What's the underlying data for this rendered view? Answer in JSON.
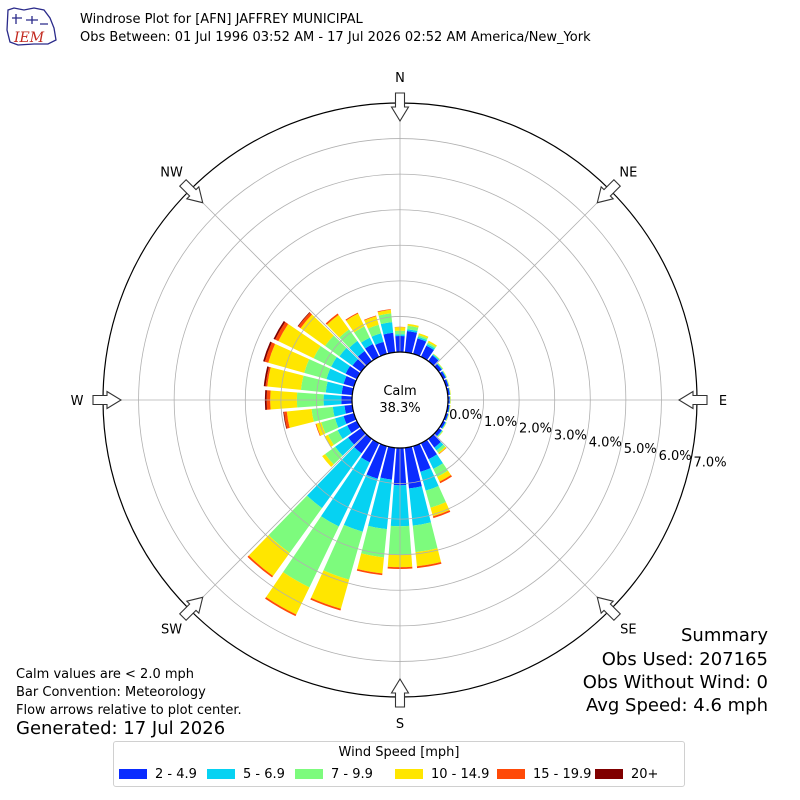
{
  "header": {
    "title": "Windrose Plot for [AFN] JAFFREY MUNICIPAL",
    "subtitle": "Obs Between: 01 Jul 1996 03:52 AM - 17 Jul 2026 02:52 AM America/New_York",
    "logo_text": "IEM"
  },
  "footer": {
    "calm_note": "Calm values are < 2.0 mph",
    "bar_convention": "Bar Convention: Meteorology",
    "flow_note": "Flow arrows relative to plot center.",
    "generated": "Generated: 17 Jul 2026"
  },
  "summary": {
    "heading": "Summary",
    "obs_used": "Obs Used: 207165",
    "obs_without_wind": "Obs Without Wind: 0",
    "avg_speed": "Avg Speed: 4.6 mph"
  },
  "legend": {
    "title": "Wind Speed [mph]"
  },
  "chart_data": {
    "type": "windrose",
    "calm_label": "Calm",
    "calm_value": "38.3%",
    "directions": [
      "N",
      "NE",
      "E",
      "SE",
      "S",
      "SW",
      "W",
      "NW"
    ],
    "radial_ticks": [
      "0.0%",
      "1.0%",
      "2.0%",
      "3.0%",
      "4.0%",
      "5.0%",
      "6.0%",
      "7.0%"
    ],
    "r_max_percent": 7.0,
    "calm_percent": 38.3,
    "grid": true,
    "bins": [
      {
        "label": "2 - 4.9",
        "color": "#0a2cff"
      },
      {
        "label": "5 - 6.9",
        "color": "#06d2f2"
      },
      {
        "label": "7 - 9.9",
        "color": "#7dfb7d"
      },
      {
        "label": "10 - 14.9",
        "color": "#ffe600"
      },
      {
        "label": "15 - 19.9",
        "color": "#ff4a08"
      },
      {
        "label": "20+",
        "color": "#800000"
      }
    ],
    "sector_direction_deg": [
      0,
      10,
      20,
      30,
      40,
      50,
      60,
      70,
      80,
      90,
      100,
      110,
      120,
      130,
      140,
      150,
      160,
      170,
      180,
      190,
      200,
      210,
      220,
      230,
      240,
      250,
      260,
      270,
      280,
      290,
      300,
      310,
      320,
      330,
      340,
      350
    ],
    "cumulative_percent": [
      [
        0.45,
        0.5,
        0.6,
        0.7,
        0.71,
        0.71
      ],
      [
        0.6,
        0.65,
        0.75,
        0.8,
        0.8,
        0.8
      ],
      [
        0.45,
        0.5,
        0.55,
        0.6,
        0.6,
        0.6
      ],
      [
        0.35,
        0.4,
        0.45,
        0.5,
        0.5,
        0.5
      ],
      [
        0.2,
        0.23,
        0.25,
        0.26,
        0.26,
        0.26
      ],
      [
        0.1,
        0.12,
        0.14,
        0.15,
        0.15,
        0.15
      ],
      [
        0.08,
        0.1,
        0.11,
        0.12,
        0.12,
        0.12
      ],
      [
        0.07,
        0.08,
        0.09,
        0.1,
        0.1,
        0.1
      ],
      [
        0.06,
        0.07,
        0.08,
        0.09,
        0.09,
        0.09
      ],
      [
        0.05,
        0.06,
        0.07,
        0.08,
        0.08,
        0.08
      ],
      [
        0.05,
        0.06,
        0.07,
        0.08,
        0.08,
        0.08
      ],
      [
        0.06,
        0.07,
        0.08,
        0.09,
        0.09,
        0.09
      ],
      [
        0.07,
        0.09,
        0.1,
        0.11,
        0.11,
        0.11
      ],
      [
        0.1,
        0.12,
        0.14,
        0.15,
        0.15,
        0.15
      ],
      [
        0.3,
        0.4,
        0.48,
        0.52,
        0.53,
        0.53
      ],
      [
        0.5,
        0.8,
        1.05,
        1.2,
        1.25,
        1.25
      ],
      [
        0.75,
        1.3,
        1.8,
        2.05,
        2.1,
        2.1
      ],
      [
        1.15,
        2.2,
        2.95,
        3.35,
        3.4,
        3.4
      ],
      [
        1.05,
        2.2,
        3.0,
        3.35,
        3.4,
        3.4
      ],
      [
        0.9,
        2.3,
        3.1,
        3.55,
        3.6,
        3.6
      ],
      [
        0.95,
        2.5,
        3.9,
        4.75,
        4.8,
        4.8
      ],
      [
        0.6,
        2.6,
        4.5,
        5.35,
        5.4,
        5.4
      ],
      [
        0.5,
        2.4,
        3.95,
        4.75,
        4.8,
        4.8
      ],
      [
        0.45,
        0.9,
        1.25,
        1.35,
        1.35,
        1.35
      ],
      [
        0.3,
        0.6,
        0.9,
        1.0,
        1.0,
        1.0
      ],
      [
        0.3,
        0.55,
        0.95,
        1.1,
        1.12,
        1.12
      ],
      [
        0.22,
        0.55,
        1.15,
        1.85,
        1.93,
        1.95
      ],
      [
        0.3,
        0.8,
        1.55,
        2.3,
        2.4,
        2.45
      ],
      [
        0.3,
        0.75,
        1.45,
        2.4,
        2.45,
        2.5
      ],
      [
        0.3,
        0.8,
        1.45,
        2.5,
        2.6,
        2.65
      ],
      [
        0.35,
        0.8,
        1.35,
        2.45,
        2.55,
        2.6
      ],
      [
        0.3,
        0.75,
        1.25,
        2.1,
        2.18,
        2.2
      ],
      [
        0.35,
        0.7,
        1.1,
        1.6,
        1.65,
        1.65
      ],
      [
        0.4,
        0.6,
        0.95,
        1.35,
        1.38,
        1.38
      ],
      [
        0.35,
        0.6,
        0.85,
        1.1,
        1.12,
        1.12
      ],
      [
        0.55,
        0.85,
        1.1,
        1.2,
        1.22,
        1.22
      ]
    ]
  }
}
